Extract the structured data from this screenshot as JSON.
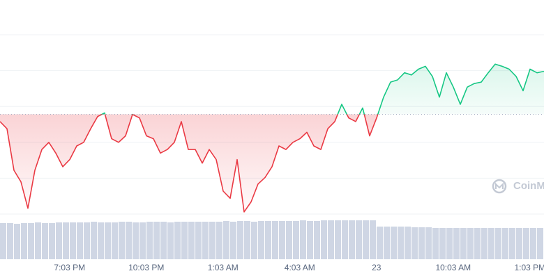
{
  "chart_data": {
    "type": "line",
    "watermark": "CoinMarketCap",
    "xlim": [
      16.33,
      37.6
    ],
    "xticks": [
      {
        "value": 19.05,
        "label": "7:03 PM"
      },
      {
        "value": 22.05,
        "label": "10:03 PM"
      },
      {
        "value": 25.05,
        "label": "1:03 AM"
      },
      {
        "value": 28.05,
        "label": "4:03 AM"
      },
      {
        "value": 31.05,
        "label": "23"
      },
      {
        "value": 34.05,
        "label": "10:03 AM"
      },
      {
        "value": 37.05,
        "label": "1:03 PM"
      }
    ],
    "ylim": [
      0,
      250
    ],
    "yticks": [
      0,
      50,
      100,
      150,
      200,
      250
    ],
    "y2lim": [
      0,
      100
    ],
    "grid": true,
    "baseline": 139,
    "up_color": "#16c784",
    "down_color": "#ea3943",
    "series": [
      {
        "type": "line",
        "values": [
          129,
          119,
          61,
          45,
          8,
          61,
          90,
          100,
          85,
          66,
          76,
          95,
          100,
          119,
          136,
          141,
          105,
          100,
          109,
          139,
          134,
          109,
          105,
          85,
          90,
          100,
          129,
          90,
          90,
          71,
          90,
          76,
          32,
          22,
          76,
          3,
          17,
          42,
          51,
          66,
          95,
          90,
          100,
          105,
          114,
          95,
          90,
          119,
          129,
          153,
          134,
          129,
          148,
          109,
          134,
          163,
          184,
          187,
          197,
          194,
          202,
          206,
          192,
          163,
          197,
          177,
          153,
          177,
          182,
          184,
          197,
          209,
          206,
          202,
          192,
          172,
          202,
          197,
          199
        ]
      },
      {
        "type": "bar",
        "axis": "y2",
        "color": "#cfd6e4",
        "values": [
          52,
          52,
          51,
          52,
          52,
          53,
          52,
          52,
          53,
          53,
          53,
          53,
          53,
          54,
          53,
          53,
          53,
          54,
          54,
          53,
          53,
          54,
          54,
          54,
          53,
          54,
          54,
          54,
          54,
          54,
          54,
          54,
          55,
          54,
          55,
          55,
          54,
          55,
          55,
          55,
          55,
          55,
          55,
          56,
          55,
          55,
          56,
          56,
          56,
          56,
          56,
          56,
          56,
          56,
          47,
          47,
          47,
          47,
          47,
          46,
          46,
          46,
          45,
          45,
          45,
          45,
          45,
          45,
          45,
          45,
          45,
          45,
          45,
          45,
          45,
          45,
          45,
          45
        ]
      }
    ]
  }
}
